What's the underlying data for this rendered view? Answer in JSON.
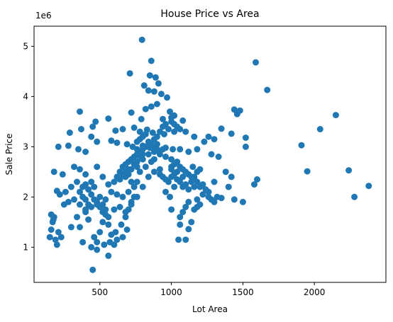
{
  "chart_data": {
    "type": "scatter",
    "title": "House Price vs Area",
    "xlabel": "Lot Area",
    "ylabel": "Sale Price",
    "y_offset_label": "1e6",
    "xlim": [
      40,
      2500
    ],
    "ylim": [
      0.3,
      5.4
    ],
    "x_ticks": [
      500,
      1000,
      1500,
      2000
    ],
    "y_ticks": [
      1,
      2,
      3,
      4,
      5
    ],
    "grid": false,
    "color": "#1f77b4",
    "points": [
      [
        795,
        5.13
      ],
      [
        860,
        4.71
      ],
      [
        1590,
        4.68
      ],
      [
        710,
        4.46
      ],
      [
        850,
        4.42
      ],
      [
        890,
        4.38
      ],
      [
        810,
        4.22
      ],
      [
        910,
        4.26
      ],
      [
        1670,
        4.13
      ],
      [
        840,
        4.12
      ],
      [
        880,
        4.1
      ],
      [
        930,
        4.05
      ],
      [
        970,
        3.98
      ],
      [
        820,
        3.75
      ],
      [
        860,
        3.8
      ],
      [
        900,
        3.85
      ],
      [
        990,
        3.7
      ],
      [
        1020,
        3.62
      ],
      [
        1440,
        3.74
      ],
      [
        1480,
        3.72
      ],
      [
        1460,
        3.65
      ],
      [
        2150,
        3.63
      ],
      [
        360,
        3.7
      ],
      [
        560,
        3.56
      ],
      [
        720,
        3.68
      ],
      [
        790,
        3.55
      ],
      [
        940,
        3.55
      ],
      [
        1000,
        3.58
      ],
      [
        1080,
        3.52
      ],
      [
        2040,
        3.35
      ],
      [
        1350,
        3.36
      ],
      [
        1420,
        3.26
      ],
      [
        290,
        3.28
      ],
      [
        370,
        3.35
      ],
      [
        450,
        3.4
      ],
      [
        470,
        3.5
      ],
      [
        610,
        3.32
      ],
      [
        660,
        3.35
      ],
      [
        740,
        3.38
      ],
      [
        780,
        3.3
      ],
      [
        830,
        3.34
      ],
      [
        870,
        3.28
      ],
      [
        950,
        3.25
      ],
      [
        1020,
        3.3
      ],
      [
        1100,
        3.3
      ],
      [
        1160,
        3.2
      ],
      [
        1260,
        3.2
      ],
      [
        1300,
        3.15
      ],
      [
        1520,
        3.18
      ],
      [
        1910,
        3.03
      ],
      [
        210,
        3.0
      ],
      [
        280,
        3.02
      ],
      [
        350,
        2.95
      ],
      [
        400,
        2.9
      ],
      [
        440,
        3.2
      ],
      [
        480,
        3.1
      ],
      [
        580,
        3.12
      ],
      [
        620,
        3.08
      ],
      [
        690,
        3.05
      ],
      [
        730,
        3.0
      ],
      [
        760,
        2.95
      ],
      [
        800,
        3.02
      ],
      [
        850,
        2.98
      ],
      [
        900,
        3.05
      ],
      [
        960,
        2.98
      ],
      [
        1010,
        2.95
      ],
      [
        1060,
        2.95
      ],
      [
        1120,
        2.9
      ],
      [
        1180,
        2.95
      ],
      [
        1230,
        3.1
      ],
      [
        1280,
        2.85
      ],
      [
        1330,
        2.8
      ],
      [
        1520,
        3.0
      ],
      [
        2240,
        2.53
      ],
      [
        1950,
        2.51
      ],
      [
        1600,
        2.35
      ],
      [
        1580,
        2.25
      ],
      [
        2280,
        2.0
      ],
      [
        2380,
        2.22
      ],
      [
        1500,
        1.9
      ],
      [
        1440,
        1.95
      ],
      [
        1350,
        1.98
      ],
      [
        1400,
        2.2
      ],
      [
        1380,
        2.5
      ],
      [
        1420,
        2.4
      ],
      [
        1300,
        2.3
      ],
      [
        1260,
        2.1
      ],
      [
        1220,
        2.05
      ],
      [
        1180,
        1.95
      ],
      [
        1160,
        2.2
      ],
      [
        1120,
        1.9
      ],
      [
        1100,
        1.8
      ],
      [
        1080,
        1.7
      ],
      [
        1060,
        1.6
      ],
      [
        1140,
        1.5
      ],
      [
        1120,
        1.36
      ],
      [
        1100,
        1.15
      ],
      [
        1050,
        1.15
      ],
      [
        1060,
        1.45
      ],
      [
        1000,
        1.75
      ],
      [
        990,
        2.0
      ],
      [
        960,
        2.1
      ],
      [
        980,
        2.3
      ],
      [
        940,
        2.4
      ],
      [
        920,
        2.55
      ],
      [
        1000,
        2.6
      ],
      [
        1040,
        2.5
      ],
      [
        1020,
        2.2
      ],
      [
        1080,
        2.4
      ],
      [
        1150,
        2.6
      ],
      [
        200,
        2.12
      ],
      [
        220,
        2.05
      ],
      [
        260,
        2.1
      ],
      [
        300,
        2.2
      ],
      [
        340,
        2.3
      ],
      [
        380,
        2.0
      ],
      [
        400,
        1.95
      ],
      [
        420,
        1.85
      ],
      [
        460,
        2.2
      ],
      [
        500,
        2.0
      ],
      [
        540,
        1.95
      ],
      [
        580,
        2.1
      ],
      [
        620,
        2.05
      ],
      [
        660,
        2.0
      ],
      [
        700,
        2.1
      ],
      [
        740,
        2.2
      ],
      [
        780,
        2.5
      ],
      [
        820,
        2.6
      ],
      [
        860,
        2.7
      ],
      [
        880,
        2.75
      ],
      [
        180,
        2.5
      ],
      [
        240,
        2.45
      ],
      [
        320,
        2.6
      ],
      [
        360,
        2.55
      ],
      [
        400,
        2.45
      ],
      [
        440,
        2.3
      ],
      [
        480,
        2.6
      ],
      [
        520,
        2.4
      ],
      [
        560,
        2.25
      ],
      [
        600,
        2.3
      ],
      [
        640,
        2.5
      ],
      [
        680,
        2.4
      ],
      [
        720,
        2.3
      ],
      [
        760,
        2.6
      ],
      [
        800,
        2.75
      ],
      [
        840,
        2.85
      ],
      [
        880,
        2.9
      ],
      [
        920,
        2.85
      ],
      [
        960,
        2.8
      ],
      [
        1000,
        2.75
      ],
      [
        150,
        1.2
      ],
      [
        160,
        1.35
      ],
      [
        170,
        1.5
      ],
      [
        180,
        1.6
      ],
      [
        160,
        1.65
      ],
      [
        175,
        1.55
      ],
      [
        190,
        1.15
      ],
      [
        200,
        1.05
      ],
      [
        210,
        1.3
      ],
      [
        230,
        1.2
      ],
      [
        300,
        1.4
      ],
      [
        340,
        1.6
      ],
      [
        360,
        1.4
      ],
      [
        400,
        1.7
      ],
      [
        420,
        1.55
      ],
      [
        460,
        1.2
      ],
      [
        480,
        1.1
      ],
      [
        500,
        1.3
      ],
      [
        520,
        1.5
      ],
      [
        540,
        1.65
      ],
      [
        560,
        1.45
      ],
      [
        580,
        1.25
      ],
      [
        600,
        1.05
      ],
      [
        620,
        1.15
      ],
      [
        650,
        1.45
      ],
      [
        680,
        1.6
      ],
      [
        700,
        1.75
      ],
      [
        720,
        1.85
      ],
      [
        740,
        2.0
      ],
      [
        760,
        2.3
      ],
      [
        450,
        0.55
      ],
      [
        560,
        0.83
      ],
      [
        380,
        1.1
      ],
      [
        440,
        1.0
      ],
      [
        480,
        0.95
      ],
      [
        530,
        1.05
      ],
      [
        570,
        1.1
      ],
      [
        610,
        1.3
      ],
      [
        660,
        1.2
      ],
      [
        690,
        1.35
      ],
      [
        250,
        1.85
      ],
      [
        280,
        1.9
      ],
      [
        320,
        1.95
      ],
      [
        360,
        1.85
      ],
      [
        400,
        1.75
      ],
      [
        440,
        1.8
      ],
      [
        480,
        1.85
      ],
      [
        520,
        1.7
      ],
      [
        560,
        1.6
      ],
      [
        600,
        1.75
      ],
      [
        640,
        1.8
      ],
      [
        680,
        1.7
      ],
      [
        720,
        1.9
      ],
      [
        760,
        2.0
      ],
      [
        800,
        2.2
      ],
      [
        840,
        2.4
      ],
      [
        880,
        2.5
      ],
      [
        920,
        2.45
      ],
      [
        960,
        2.35
      ],
      [
        1000,
        2.4
      ],
      [
        1020,
        2.45
      ],
      [
        1040,
        2.35
      ],
      [
        1060,
        2.3
      ],
      [
        1080,
        2.2
      ],
      [
        1100,
        2.25
      ],
      [
        1120,
        2.15
      ],
      [
        1140,
        2.3
      ],
      [
        1160,
        2.4
      ],
      [
        1180,
        2.5
      ],
      [
        1200,
        2.55
      ],
      [
        880,
        3.15
      ],
      [
        900,
        3.2
      ],
      [
        920,
        3.3
      ],
      [
        940,
        3.4
      ],
      [
        960,
        3.45
      ],
      [
        980,
        3.35
      ],
      [
        1000,
        3.5
      ],
      [
        1020,
        3.45
      ],
      [
        1040,
        3.4
      ],
      [
        1060,
        3.35
      ],
      [
        760,
        3.1
      ],
      [
        780,
        3.15
      ],
      [
        800,
        3.2
      ],
      [
        820,
        3.25
      ],
      [
        840,
        3.1
      ],
      [
        860,
        3.05
      ],
      [
        880,
        3.0
      ],
      [
        900,
        2.95
      ],
      [
        920,
        2.9
      ],
      [
        940,
        2.95
      ],
      [
        660,
        2.6
      ],
      [
        680,
        2.65
      ],
      [
        700,
        2.7
      ],
      [
        720,
        2.75
      ],
      [
        740,
        2.8
      ],
      [
        760,
        2.85
      ],
      [
        780,
        2.9
      ],
      [
        800,
        2.95
      ],
      [
        820,
        3.0
      ],
      [
        700,
        2.55
      ],
      [
        620,
        2.4
      ],
      [
        640,
        2.35
      ],
      [
        660,
        2.45
      ],
      [
        680,
        2.5
      ],
      [
        700,
        2.45
      ],
      [
        720,
        2.55
      ],
      [
        740,
        2.65
      ],
      [
        760,
        2.7
      ],
      [
        780,
        2.8
      ],
      [
        800,
        2.85
      ],
      [
        360,
        2.1
      ],
      [
        380,
        2.2
      ],
      [
        400,
        2.25
      ],
      [
        420,
        2.15
      ],
      [
        440,
        2.05
      ],
      [
        460,
        1.95
      ],
      [
        480,
        1.9
      ],
      [
        500,
        1.8
      ],
      [
        520,
        1.85
      ],
      [
        540,
        1.75
      ],
      [
        1000,
        2.55
      ],
      [
        1020,
        2.65
      ],
      [
        1040,
        2.7
      ],
      [
        1060,
        2.6
      ],
      [
        1080,
        2.55
      ],
      [
        1100,
        2.5
      ],
      [
        1120,
        2.45
      ],
      [
        1140,
        2.4
      ],
      [
        1160,
        2.35
      ],
      [
        1180,
        2.3
      ],
      [
        1200,
        2.2
      ],
      [
        1220,
        2.25
      ],
      [
        1240,
        2.15
      ],
      [
        1260,
        2.0
      ],
      [
        1280,
        1.95
      ],
      [
        1300,
        1.9
      ],
      [
        1320,
        2.0
      ],
      [
        1200,
        1.85
      ],
      [
        1180,
        1.8
      ],
      [
        1160,
        1.75
      ]
    ]
  }
}
